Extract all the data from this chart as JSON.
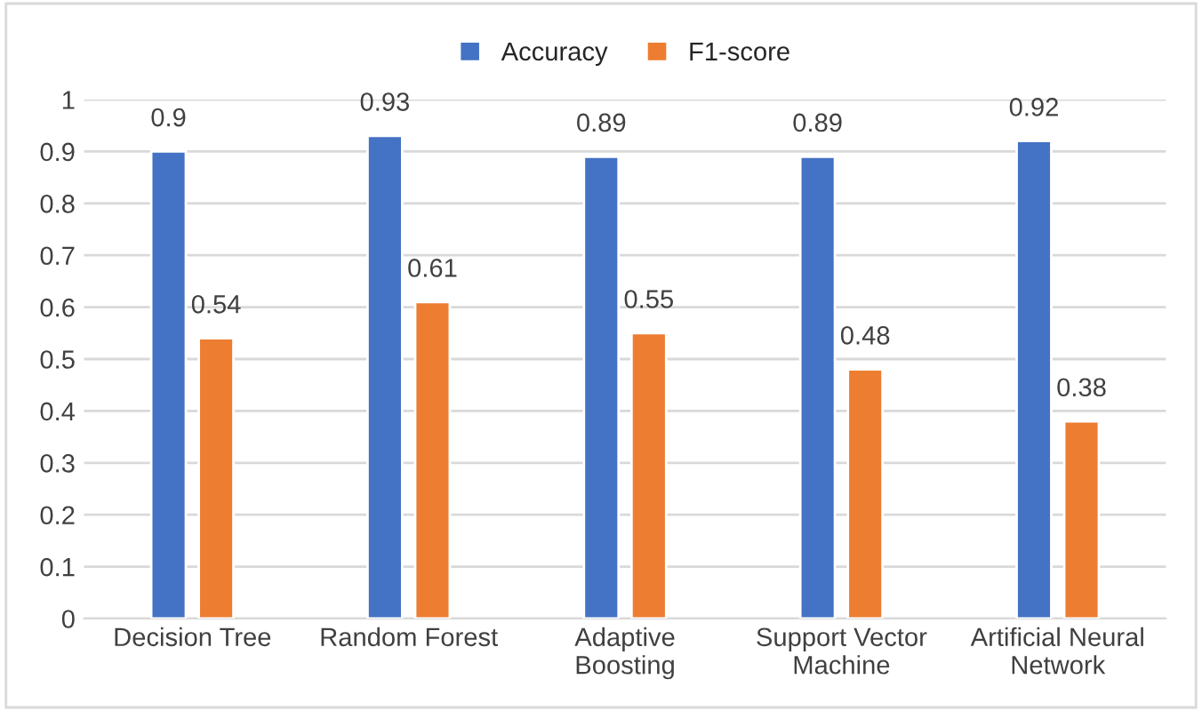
{
  "chart_data": {
    "type": "bar",
    "categories": [
      "Decision Tree",
      "Random Forest",
      "Adaptive\nBoosting",
      "Support Vector\nMachine",
      "Artificial Neural\nNetwork"
    ],
    "series": [
      {
        "name": "Accuracy",
        "color": "#4472c4",
        "values": [
          0.9,
          0.93,
          0.89,
          0.89,
          0.92
        ]
      },
      {
        "name": "F1-score",
        "color": "#ed7d31",
        "values": [
          0.54,
          0.61,
          0.55,
          0.48,
          0.38
        ]
      }
    ],
    "ylim": [
      0,
      1
    ],
    "yticks": [
      0,
      0.1,
      0.2,
      0.3,
      0.4,
      0.5,
      0.6,
      0.7,
      0.8,
      0.9,
      1
    ],
    "grid": "y",
    "legend": "top",
    "data_labels": true
  }
}
